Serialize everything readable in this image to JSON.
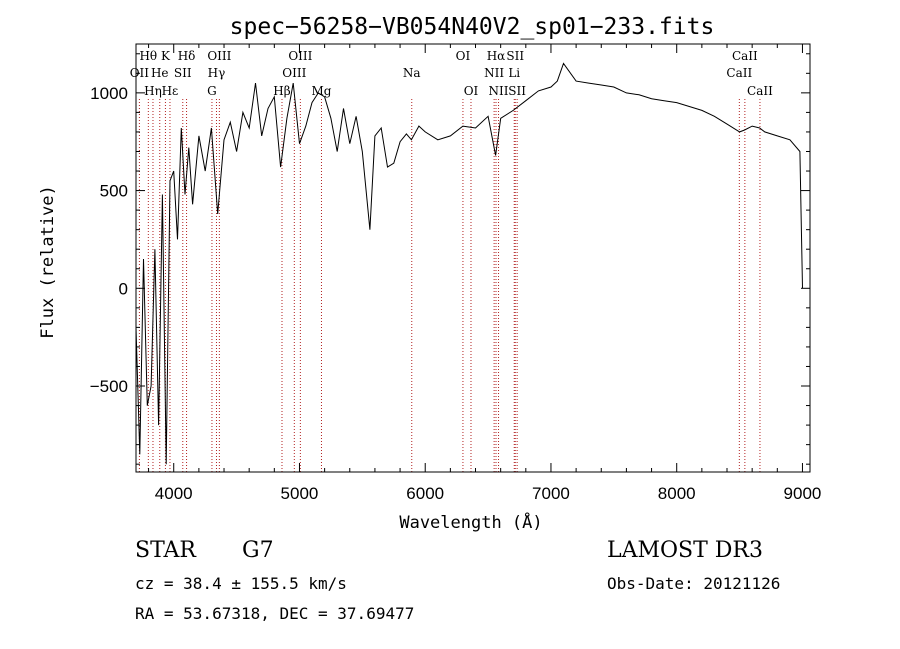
{
  "chart_data": {
    "type": "line",
    "title": "spec−56258−VB054N40V2_sp01−233.fits",
    "xlabel": "Wavelength (Å)",
    "ylabel": "Flux (relative)",
    "xlim": [
      3700,
      9060
    ],
    "ylim": [
      -940,
      1250
    ],
    "x_ticks": [
      4000,
      5000,
      6000,
      7000,
      8000,
      9000
    ],
    "x_tick_labels": [
      "4000",
      "5000",
      "6000",
      "7000",
      "8000",
      "9000"
    ],
    "y_ticks": [
      -500,
      0,
      500,
      1000
    ],
    "y_tick_labels": [
      "−500",
      "0",
      "500",
      "1000"
    ],
    "grid": false,
    "line_color": "#000000",
    "marker_color": "#b22222",
    "series": [
      {
        "name": "flux",
        "x": [
          3700,
          3730,
          3760,
          3790,
          3820,
          3850,
          3880,
          3910,
          3940,
          3970,
          4000,
          4030,
          4060,
          4090,
          4120,
          4150,
          4200,
          4250,
          4300,
          4350,
          4400,
          4450,
          4500,
          4550,
          4600,
          4650,
          4700,
          4750,
          4800,
          4850,
          4900,
          4950,
          5000,
          5050,
          5100,
          5150,
          5200,
          5250,
          5300,
          5350,
          5400,
          5450,
          5500,
          5560,
          5600,
          5650,
          5700,
          5750,
          5800,
          5850,
          5890,
          5950,
          6000,
          6100,
          6200,
          6300,
          6400,
          6500,
          6560,
          6600,
          6700,
          6800,
          6900,
          7000,
          7050,
          7100,
          7200,
          7300,
          7400,
          7500,
          7600,
          7700,
          7800,
          7900,
          8000,
          8100,
          8200,
          8300,
          8400,
          8500,
          8540,
          8600,
          8660,
          8700,
          8800,
          8900,
          8980,
          9000
        ],
        "y": [
          -200,
          -850,
          150,
          -600,
          -500,
          200,
          -700,
          480,
          -900,
          550,
          600,
          250,
          820,
          480,
          720,
          430,
          780,
          600,
          820,
          380,
          760,
          850,
          700,
          900,
          820,
          1050,
          780,
          920,
          980,
          620,
          870,
          1050,
          740,
          830,
          950,
          1000,
          980,
          870,
          700,
          920,
          740,
          880,
          700,
          300,
          780,
          820,
          620,
          640,
          750,
          790,
          760,
          830,
          800,
          760,
          780,
          830,
          820,
          880,
          680,
          870,
          910,
          960,
          1010,
          1030,
          1060,
          1150,
          1060,
          1050,
          1040,
          1030,
          1000,
          990,
          970,
          960,
          950,
          930,
          910,
          880,
          840,
          800,
          810,
          830,
          820,
          800,
          780,
          760,
          700,
          0
        ]
      }
    ],
    "line_markers": [
      {
        "label": "Hθ",
        "x": 3798,
        "row": 1
      },
      {
        "label": "OII",
        "x": 3727,
        "row": 2
      },
      {
        "label": "Hη",
        "x": 3835,
        "row": 3
      },
      {
        "label": "K",
        "x": 3934,
        "row": 1
      },
      {
        "label": "He",
        "x": 3889,
        "row": 2
      },
      {
        "label": "Hε",
        "x": 3970,
        "row": 3
      },
      {
        "label": "SII",
        "x": 4072,
        "row": 2
      },
      {
        "label": "Hδ",
        "x": 4102,
        "row": 1
      },
      {
        "label": "OIII",
        "x": 4363,
        "row": 1
      },
      {
        "label": "Hγ",
        "x": 4340,
        "row": 2
      },
      {
        "label": "G",
        "x": 4304,
        "row": 3
      },
      {
        "label": "Hβ",
        "x": 4861,
        "row": 3
      },
      {
        "label": "OIII",
        "x": 5007,
        "row": 1
      },
      {
        "label": "OIII",
        "x": 4959,
        "row": 2
      },
      {
        "label": "Mg",
        "x": 5175,
        "row": 3
      },
      {
        "label": "Na",
        "x": 5893,
        "row": 2
      },
      {
        "label": "OI",
        "x": 6300,
        "row": 1
      },
      {
        "label": "OI",
        "x": 6364,
        "row": 3
      },
      {
        "label": "Hα",
        "x": 6563,
        "row": 1
      },
      {
        "label": "NII",
        "x": 6548,
        "row": 2
      },
      {
        "label": "NII",
        "x": 6583,
        "row": 3
      },
      {
        "label": "SII",
        "x": 6716,
        "row": 1
      },
      {
        "label": "Li",
        "x": 6708,
        "row": 2
      },
      {
        "label": "SII",
        "x": 6731,
        "row": 3
      },
      {
        "label": "CaII",
        "x": 8542,
        "row": 1
      },
      {
        "label": "CaII",
        "x": 8498,
        "row": 2
      },
      {
        "label": "CaII",
        "x": 8662,
        "row": 3
      }
    ]
  },
  "info": {
    "class": "STAR",
    "subclass": "G7",
    "survey": "LAMOST DR3",
    "cz": "cz = 38.4 ± 155.5 km/s",
    "obs_date": "Obs-Date: 20121126",
    "coords": "RA =  53.67318, DEC =  37.69477"
  }
}
